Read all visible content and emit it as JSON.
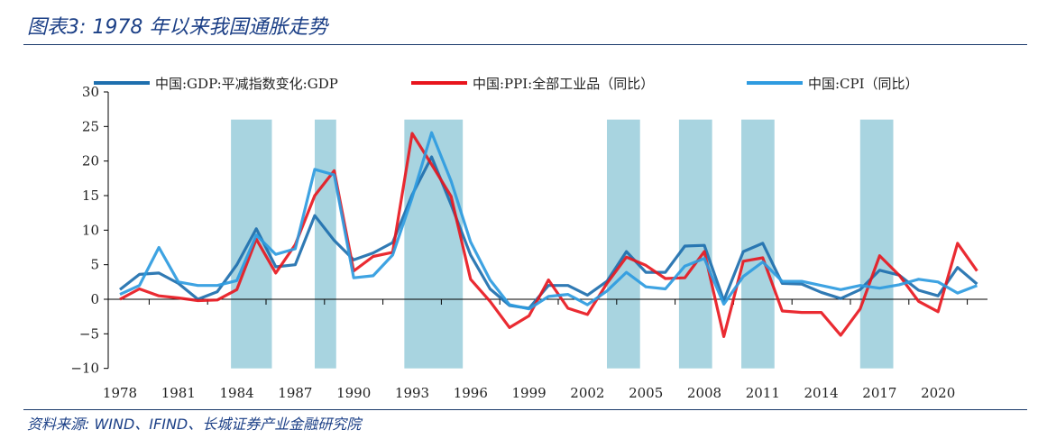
{
  "title": "图表3: 1978 年以来我国通胀走势",
  "source": "资料来源: WIND、IFIND、长城证券产业金融研究院",
  "chart_data": {
    "type": "line",
    "title": "图表3: 1978 年以来我国通胀走势",
    "xlabel": "",
    "ylabel": "",
    "ylim": [
      -10,
      30
    ],
    "yticks": [
      30,
      25,
      20,
      15,
      10,
      5,
      0,
      -5,
      -10
    ],
    "xticks": [
      "1978",
      "1981",
      "1984",
      "1987",
      "1990",
      "1993",
      "1996",
      "1999",
      "2002",
      "2005",
      "2008",
      "2011",
      "2014",
      "2017",
      "2020"
    ],
    "legend_position": "top",
    "grid": false,
    "x": [
      1978,
      1979,
      1980,
      1981,
      1982,
      1983,
      1984,
      1985,
      1986,
      1987,
      1988,
      1989,
      1990,
      1991,
      1992,
      1993,
      1994,
      1995,
      1996,
      1997,
      1998,
      1999,
      2000,
      2001,
      2002,
      2003,
      2004,
      2005,
      2006,
      2007,
      2008,
      2009,
      2010,
      2011,
      2012,
      2013,
      2014,
      2015,
      2016,
      2017,
      2018,
      2019,
      2020,
      2021,
      2022
    ],
    "series": [
      {
        "name": "中国:GDP:平减指数变化:GDP",
        "color": "#1e6fae",
        "values": [
          1.4,
          3.6,
          3.8,
          2.3,
          0.0,
          1.1,
          5.0,
          10.2,
          4.7,
          5.0,
          12.1,
          8.5,
          5.7,
          6.7,
          8.2,
          15.1,
          20.6,
          13.7,
          6.4,
          1.5,
          -0.9,
          -1.3,
          2.0,
          2.0,
          0.6,
          2.6,
          6.9,
          3.9,
          3.9,
          7.7,
          7.8,
          -0.2,
          6.9,
          8.1,
          2.3,
          2.2,
          1.0,
          0.1,
          1.4,
          4.2,
          3.5,
          1.3,
          0.5,
          4.6,
          2.2
        ]
      },
      {
        "name": "中国:PPI:全部工业品（同比）",
        "color": "#e8141c",
        "values": [
          0.0,
          1.5,
          0.5,
          0.2,
          -0.2,
          -0.1,
          1.4,
          8.7,
          3.8,
          7.9,
          15.0,
          18.6,
          4.1,
          6.2,
          6.8,
          24.0,
          19.5,
          14.9,
          2.9,
          -0.3,
          -4.1,
          -2.4,
          2.8,
          -1.3,
          -2.2,
          2.3,
          6.1,
          4.9,
          3.0,
          3.1,
          6.9,
          -5.4,
          5.5,
          6.0,
          -1.7,
          -1.9,
          -1.9,
          -5.2,
          -1.4,
          6.3,
          3.5,
          -0.3,
          -1.8,
          8.1,
          4.1
        ]
      },
      {
        "name": "中国:CPI（同比）",
        "color": "#2e9be0",
        "values": [
          0.7,
          2.0,
          7.5,
          2.5,
          2.0,
          2.0,
          2.7,
          9.3,
          6.5,
          7.3,
          18.8,
          18.0,
          3.1,
          3.4,
          6.4,
          14.7,
          24.1,
          17.1,
          8.3,
          2.8,
          -0.8,
          -1.4,
          0.4,
          0.7,
          -0.8,
          1.2,
          3.9,
          1.8,
          1.5,
          4.8,
          5.9,
          -0.7,
          3.3,
          5.4,
          2.6,
          2.6,
          2.0,
          1.4,
          2.0,
          1.6,
          2.1,
          2.9,
          2.5,
          0.9,
          2.0
        ]
      }
    ],
    "shaded_periods": [
      [
        1983.7,
        1985.8
      ],
      [
        1988.0,
        1989.1
      ],
      [
        1992.6,
        1995.6
      ],
      [
        2003.0,
        2004.7
      ],
      [
        2006.7,
        2008.4
      ],
      [
        2009.9,
        2011.6
      ],
      [
        2016.0,
        2017.7
      ]
    ],
    "shade_color": "#a8d4e0"
  }
}
